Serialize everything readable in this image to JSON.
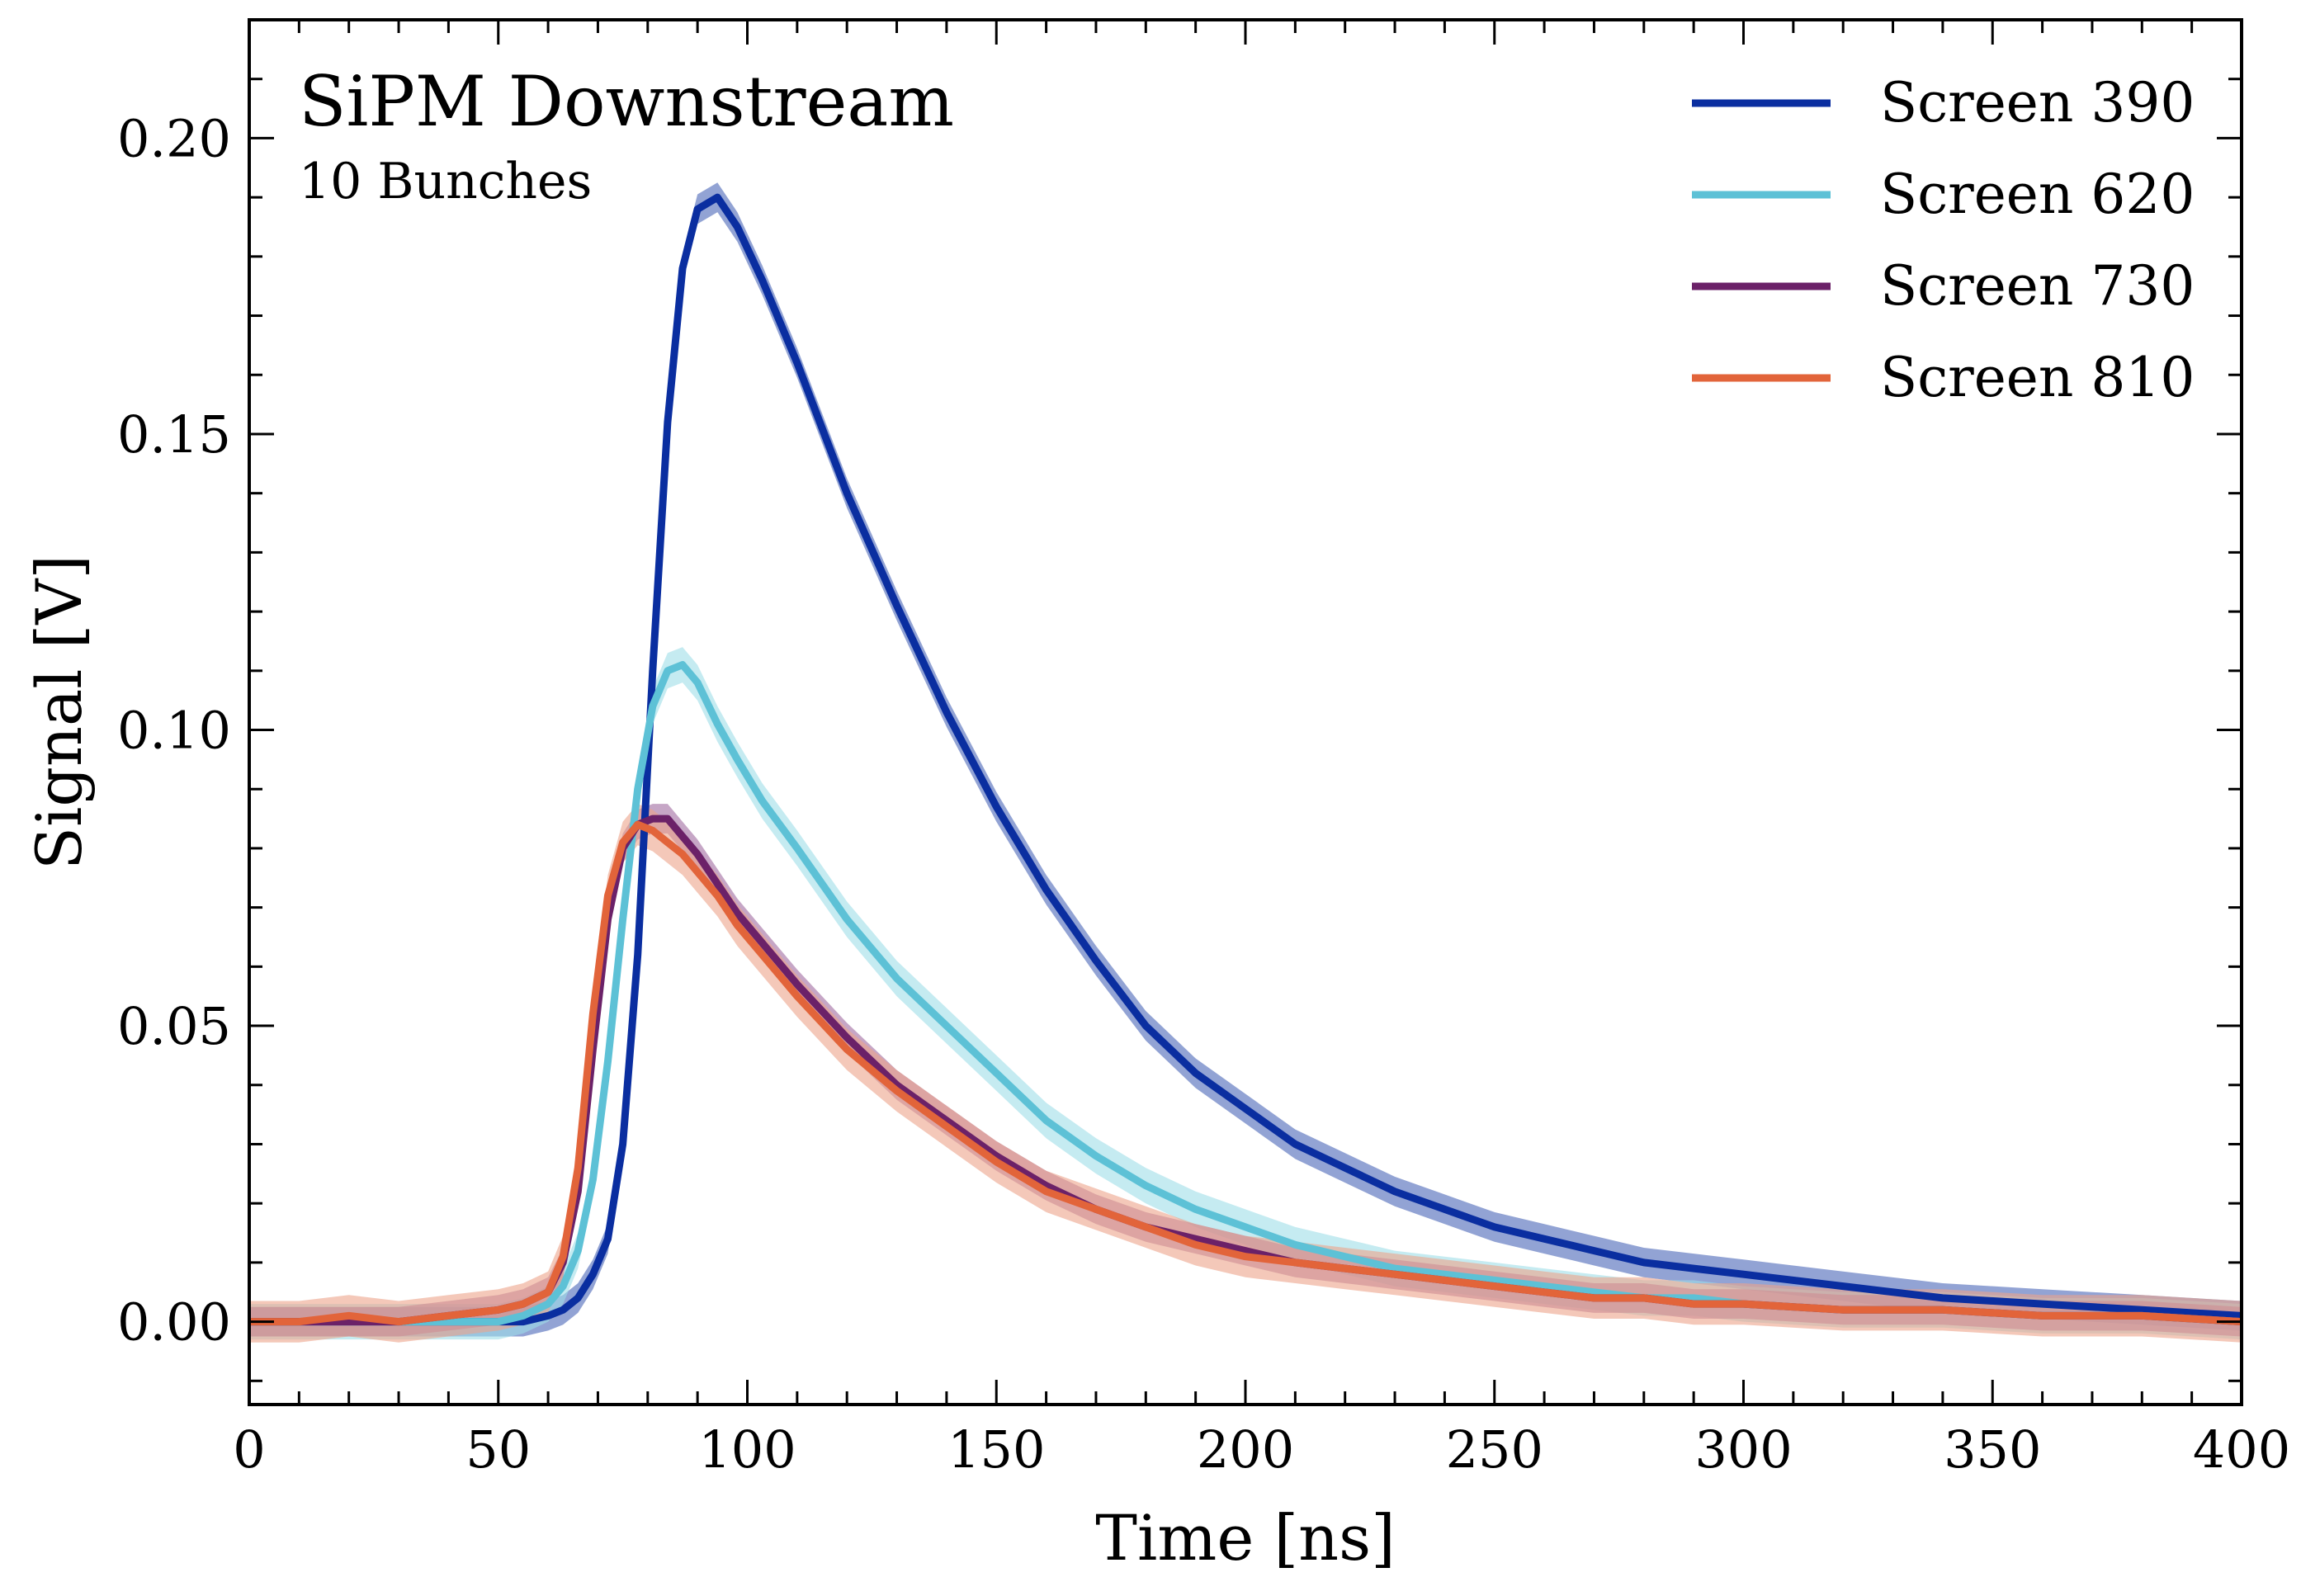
{
  "chart_data": {
    "type": "line",
    "title": "SiPM Downstream",
    "subtitle": "10 Bunches",
    "xlabel": "Time [ns]",
    "ylabel": "Signal [V]",
    "xlim": [
      0,
      400
    ],
    "ylim": [
      -0.014,
      0.22
    ],
    "x_ticks": [
      "0",
      "50",
      "100",
      "150",
      "200",
      "250",
      "300",
      "350",
      "400"
    ],
    "x_tick_values": [
      0,
      50,
      100,
      150,
      200,
      250,
      300,
      350,
      400
    ],
    "y_ticks": [
      "0.00",
      "0.05",
      "0.10",
      "0.15",
      "0.20"
    ],
    "y_tick_values": [
      0,
      0.05,
      0.1,
      0.15,
      0.2
    ],
    "legend_position": "top-right",
    "grid": false,
    "band_shown": true,
    "x": [
      0,
      10,
      20,
      30,
      40,
      50,
      55,
      60,
      63,
      66,
      69,
      72,
      75,
      78,
      81,
      84,
      87,
      90,
      94,
      98,
      103,
      110,
      120,
      130,
      140,
      150,
      160,
      170,
      180,
      190,
      200,
      210,
      220,
      230,
      240,
      250,
      260,
      270,
      280,
      290,
      300,
      320,
      340,
      360,
      380,
      400
    ],
    "series": [
      {
        "name": "Screen 390",
        "color": "#0a2ea0",
        "band_color": "#4a66b8",
        "band_halfwidth": 0.0025,
        "values": [
          0.0,
          0.0,
          0.0,
          0.0,
          0.0,
          0.0,
          0.0,
          0.001,
          0.002,
          0.004,
          0.008,
          0.014,
          0.03,
          0.062,
          0.11,
          0.152,
          0.178,
          0.188,
          0.19,
          0.185,
          0.176,
          0.162,
          0.14,
          0.121,
          0.103,
          0.087,
          0.073,
          0.061,
          0.05,
          0.042,
          0.036,
          0.03,
          0.026,
          0.022,
          0.019,
          0.016,
          0.014,
          0.012,
          0.01,
          0.009,
          0.008,
          0.006,
          0.004,
          0.003,
          0.002,
          0.001
        ]
      },
      {
        "name": "Screen 620",
        "color": "#5dc1d6",
        "band_color": "#9fdde8",
        "band_halfwidth": 0.003,
        "values": [
          0.0,
          0.0,
          0.0,
          0.0,
          0.0,
          0.0,
          0.001,
          0.003,
          0.006,
          0.012,
          0.024,
          0.044,
          0.068,
          0.09,
          0.104,
          0.11,
          0.111,
          0.108,
          0.101,
          0.095,
          0.088,
          0.08,
          0.068,
          0.058,
          0.05,
          0.042,
          0.034,
          0.028,
          0.023,
          0.019,
          0.016,
          0.013,
          0.011,
          0.009,
          0.008,
          0.007,
          0.006,
          0.005,
          0.004,
          0.004,
          0.003,
          0.002,
          0.002,
          0.001,
          0.001,
          0.0
        ]
      },
      {
        "name": "Screen 730",
        "color": "#6b2168",
        "band_color": "#a06aa0",
        "band_halfwidth": 0.0025,
        "values": [
          0.0,
          0.0,
          0.0,
          0.0,
          0.001,
          0.002,
          0.003,
          0.005,
          0.01,
          0.022,
          0.046,
          0.068,
          0.08,
          0.084,
          0.085,
          0.085,
          0.082,
          0.079,
          0.074,
          0.069,
          0.064,
          0.057,
          0.048,
          0.04,
          0.034,
          0.028,
          0.023,
          0.019,
          0.016,
          0.014,
          0.012,
          0.01,
          0.009,
          0.008,
          0.007,
          0.006,
          0.005,
          0.004,
          0.004,
          0.003,
          0.003,
          0.002,
          0.002,
          0.001,
          0.001,
          0.0
        ]
      },
      {
        "name": "Screen 810",
        "color": "#e2643a",
        "band_color": "#eda48a",
        "band_halfwidth": 0.0035,
        "values": [
          0.0,
          0.0,
          0.001,
          0.0,
          0.001,
          0.002,
          0.003,
          0.005,
          0.011,
          0.026,
          0.052,
          0.072,
          0.081,
          0.084,
          0.083,
          0.081,
          0.079,
          0.076,
          0.072,
          0.067,
          0.062,
          0.055,
          0.046,
          0.039,
          0.033,
          0.027,
          0.022,
          0.019,
          0.016,
          0.013,
          0.011,
          0.01,
          0.009,
          0.008,
          0.007,
          0.006,
          0.005,
          0.004,
          0.004,
          0.003,
          0.003,
          0.002,
          0.002,
          0.001,
          0.001,
          0.0
        ]
      }
    ]
  }
}
